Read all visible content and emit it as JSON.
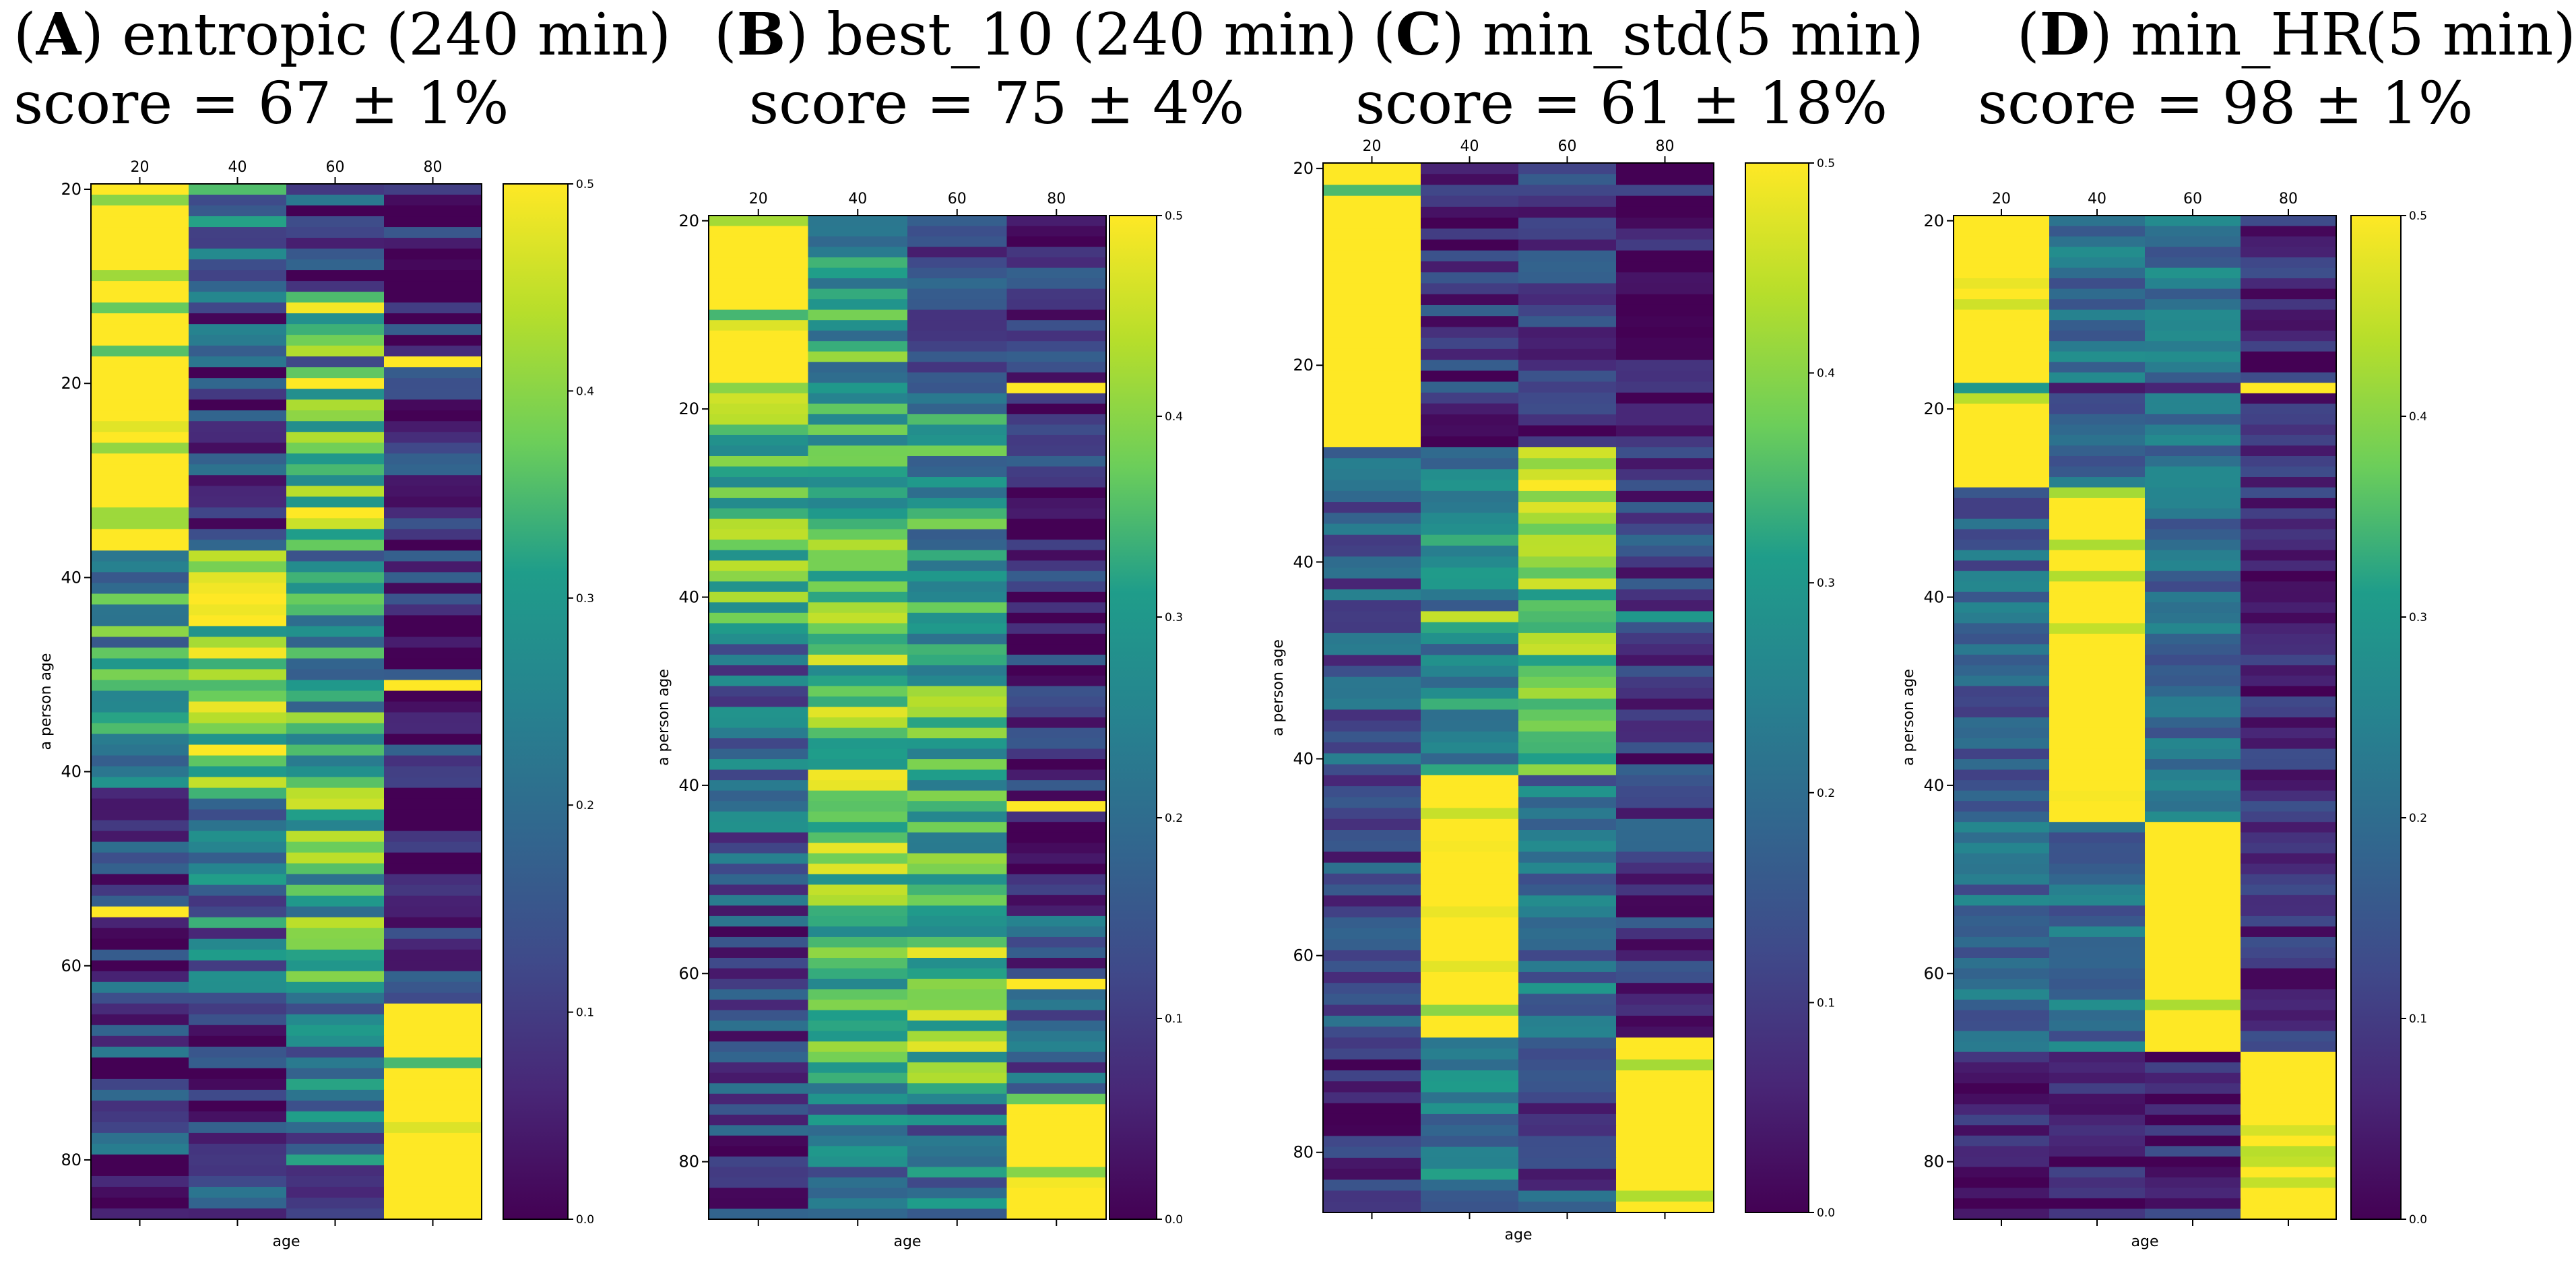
{
  "colors": {
    "viridis_stops": [
      "#440154",
      "#482777",
      "#3f4a8a",
      "#31678e",
      "#26838f",
      "#1f9d8a",
      "#6cce5a",
      "#b6de2b",
      "#fee825"
    ]
  },
  "chart_data": [
    {
      "type": "heatmap",
      "label": "A",
      "title": "entropic (240 min)",
      "score": "score = 67 ± 1%",
      "xlabel": "age",
      "ylabel": "a person age",
      "x_ticks": [
        "20",
        "40",
        "60",
        "80"
      ],
      "y_ticks": [
        "20",
        "20",
        "40",
        "40",
        "60",
        "80"
      ],
      "y_tick_rows": [
        0,
        18,
        36,
        54,
        72,
        90
      ],
      "colorbar_ticks": [
        "0.0",
        "0.1",
        "0.2",
        "0.3",
        "0.4",
        "0.5"
      ],
      "vmin": 0,
      "vmax": 0.5,
      "rows": 96,
      "profile": {
        "bands": [
          [
            0,
            10,
            [
              0.5,
              0.22,
              0.12,
              0.05
            ]
          ],
          [
            10,
            34,
            [
              0.47,
              0.12,
              0.38,
              0.06
            ]
          ],
          [
            34,
            56,
            [
              0.28,
              0.42,
              0.28,
              0.06
            ]
          ],
          [
            56,
            76,
            [
              0.12,
              0.2,
              0.34,
              0.05
            ]
          ],
          [
            76,
            96,
            [
              0.1,
              0.1,
              0.2,
              0.48
            ]
          ]
        ],
        "noise": 0.14,
        "special": [
          [
            16,
            [
              0.5,
              0.22,
              0.12,
              0.5
            ]
          ],
          [
            46,
            [
              0.35,
              0.35,
              0.3,
              0.5
            ]
          ],
          [
            67,
            [
              0.5,
              0.12,
              0.2,
              0.05
            ]
          ]
        ]
      }
    },
    {
      "type": "heatmap",
      "label": "B",
      "title": "best_10 (240 min)",
      "score": "score = 75 ± 4%",
      "xlabel": "age",
      "ylabel": "a person age",
      "x_ticks": [
        "20",
        "40",
        "60",
        "80"
      ],
      "y_ticks": [
        "20",
        "20",
        "40",
        "40",
        "60",
        "80"
      ],
      "y_tick_rows": [
        0,
        18,
        36,
        54,
        72,
        90
      ],
      "colorbar_ticks": [
        "0.0",
        "0.1",
        "0.2",
        "0.3",
        "0.4",
        "0.5"
      ],
      "vmin": 0,
      "vmax": 0.5,
      "rows": 96,
      "profile": {
        "bands": [
          [
            0,
            16,
            [
              0.46,
              0.3,
              0.16,
              0.06
            ]
          ],
          [
            16,
            40,
            [
              0.36,
              0.33,
              0.28,
              0.06
            ]
          ],
          [
            40,
            66,
            [
              0.18,
              0.38,
              0.32,
              0.06
            ]
          ],
          [
            66,
            84,
            [
              0.12,
              0.3,
              0.38,
              0.14
            ]
          ],
          [
            84,
            96,
            [
              0.1,
              0.22,
              0.2,
              0.48
            ]
          ]
        ],
        "noise": 0.12,
        "special": [
          [
            16,
            [
              0.4,
              0.3,
              0.15,
              0.5
            ]
          ],
          [
            56,
            [
              0.2,
              0.36,
              0.34,
              0.5
            ]
          ],
          [
            73,
            [
              0.1,
              0.26,
              0.4,
              0.5
            ]
          ]
        ]
      }
    },
    {
      "type": "heatmap",
      "label": "C",
      "title": "min_std(5 min)",
      "score": "score = 61 ± 18%",
      "xlabel": "age",
      "ylabel": "a person age",
      "x_ticks": [
        "20",
        "40",
        "60",
        "80"
      ],
      "y_ticks": [
        "20",
        "20",
        "40",
        "40",
        "60",
        "80"
      ],
      "y_tick_rows": [
        0,
        18,
        36,
        54,
        72,
        90
      ],
      "colorbar_ticks": [
        "0.0",
        "0.1",
        "0.2",
        "0.3",
        "0.4",
        "0.5"
      ],
      "vmin": 0,
      "vmax": 0.5,
      "rows": 96,
      "profile": {
        "bands": [
          [
            0,
            26,
            [
              0.5,
              0.08,
              0.08,
              0.02
            ]
          ],
          [
            26,
            56,
            [
              0.15,
              0.25,
              0.4,
              0.1
            ]
          ],
          [
            56,
            80,
            [
              0.12,
              0.48,
              0.2,
              0.1
            ]
          ],
          [
            80,
            96,
            [
              0.05,
              0.22,
              0.12,
              0.5
            ]
          ]
        ],
        "noise": 0.1,
        "special": [
          [
            2,
            [
              0.35,
              0.12,
              0.12,
              0.12
            ]
          ],
          [
            41,
            [
              0.1,
              0.45,
              0.35,
              0.3
            ]
          ]
        ]
      }
    },
    {
      "type": "heatmap",
      "label": "D",
      "title": "min_HR(5 min)",
      "score": "score = 98 ± 1%",
      "xlabel": "age",
      "ylabel": "a person age",
      "x_ticks": [
        "20",
        "40",
        "60",
        "80"
      ],
      "y_ticks": [
        "20",
        "20",
        "40",
        "40",
        "60",
        "80"
      ],
      "y_tick_rows": [
        0,
        18,
        36,
        54,
        72,
        90
      ],
      "colorbar_ticks": [
        "0.0",
        "0.1",
        "0.2",
        "0.3",
        "0.4",
        "0.5"
      ],
      "vmin": 0,
      "vmax": 0.5,
      "rows": 96,
      "profile": {
        "bands": [
          [
            0,
            26,
            [
              0.5,
              0.2,
              0.22,
              0.06
            ]
          ],
          [
            26,
            58,
            [
              0.18,
              0.5,
              0.2,
              0.06
            ]
          ],
          [
            58,
            80,
            [
              0.2,
              0.2,
              0.5,
              0.06
            ]
          ],
          [
            80,
            96,
            [
              0.04,
              0.04,
              0.06,
              0.5
            ]
          ]
        ],
        "noise": 0.08,
        "special": [
          [
            16,
            [
              0.3,
              0.04,
              0.06,
              0.5
            ]
          ]
        ]
      }
    }
  ]
}
